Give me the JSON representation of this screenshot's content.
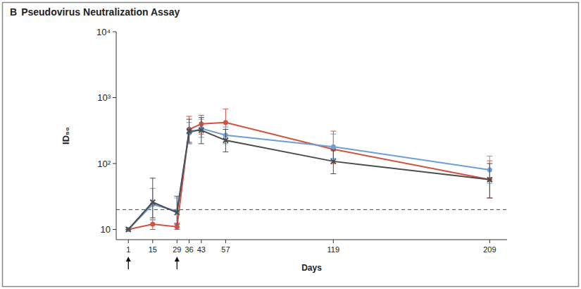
{
  "chart_data": {
    "type": "line",
    "panel": "B",
    "title": "Pseudovirus Neutralization Assay",
    "xlabel": "Days",
    "ylabel": "ID₅₀",
    "log": "y",
    "x": [
      1,
      15,
      29,
      36,
      43,
      57,
      119,
      209
    ],
    "xlim": [
      -6,
      219
    ],
    "xticks": [
      1,
      15,
      29,
      36,
      43,
      57,
      119,
      209
    ],
    "ylim": [
      7,
      10000
    ],
    "yticks": [
      10,
      {
        "value": 100,
        "label": "10²"
      },
      {
        "value": 1000,
        "label": "10³"
      },
      {
        "value": 10000,
        "label": "10⁴"
      }
    ],
    "reference_line": 20,
    "arrow_days": [
      1,
      29
    ],
    "series": [
      {
        "color": "#d4503f",
        "marker": "circle",
        "values": [
          10,
          12,
          11,
          330,
          400,
          420,
          165,
          57
        ],
        "lower": [
          10,
          10,
          10,
          200,
          280,
          270,
          100,
          30
        ],
        "upper": [
          10,
          14,
          12.5,
          520,
          540,
          670,
          310,
          110
        ]
      },
      {
        "color": "#6b9fd6",
        "marker": "circle",
        "values": [
          10,
          24,
          19,
          290,
          340,
          270,
          180,
          80
        ],
        "lower": [
          10,
          14,
          12,
          200,
          250,
          200,
          120,
          50
        ],
        "upper": [
          10,
          42,
          30,
          420,
          470,
          360,
          280,
          130
        ]
      },
      {
        "color": "#4d4d4f",
        "marker": "x",
        "values": [
          10,
          26,
          18,
          310,
          320,
          225,
          108,
          57
        ],
        "lower": [
          10,
          15,
          12,
          210,
          200,
          150,
          70,
          30
        ],
        "upper": [
          10,
          60,
          32,
          470,
          500,
          330,
          160,
          100
        ]
      }
    ]
  }
}
